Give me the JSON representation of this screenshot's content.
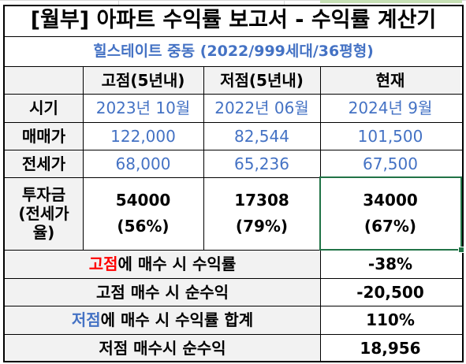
{
  "title": "[월부] 아파트 수익률 보고서 - 수익률 계산기",
  "subtitle": "힐스테이트 중동 (2022/999세대/36평형)",
  "columns": [
    "고점(5년내)",
    "저점(5년내)",
    "현재"
  ],
  "rows": {
    "period": {
      "label": "시기",
      "values": [
        "2023년 10월",
        "2022년 06월",
        "2024년 9월"
      ]
    },
    "sale": {
      "label": "매매가",
      "values": [
        "122,000",
        "82,544",
        "101,500"
      ]
    },
    "jeonse": {
      "label": "전세가",
      "values": [
        "68,000",
        "65,236",
        "67,500"
      ]
    },
    "investment": {
      "label_line1": "투자금",
      "label_line2": "(전세가",
      "label_line3": "율)",
      "values": [
        {
          "amount": "54000",
          "ratio": "(56%)"
        },
        {
          "amount": "17308",
          "ratio": "(79%)"
        },
        {
          "amount": "34000",
          "ratio": "(67%)"
        }
      ]
    }
  },
  "summary": {
    "high_return": {
      "label_accent": "고점",
      "label_rest": "에 매수 시 수익률",
      "value": "-38%"
    },
    "high_profit": {
      "label": "고점 매수 시 순수익",
      "value": "-20,500"
    },
    "low_return": {
      "label_accent": "저점",
      "label_rest": "에 매수 시 수익률 합계",
      "value": "110%"
    },
    "low_profit": {
      "label": "저점 매수시 순수익",
      "value": "18,956"
    }
  },
  "colors": {
    "blue": "#4472c4",
    "red": "#ff0000",
    "header_bg": "#f2f2f2",
    "selection": "#217346"
  }
}
